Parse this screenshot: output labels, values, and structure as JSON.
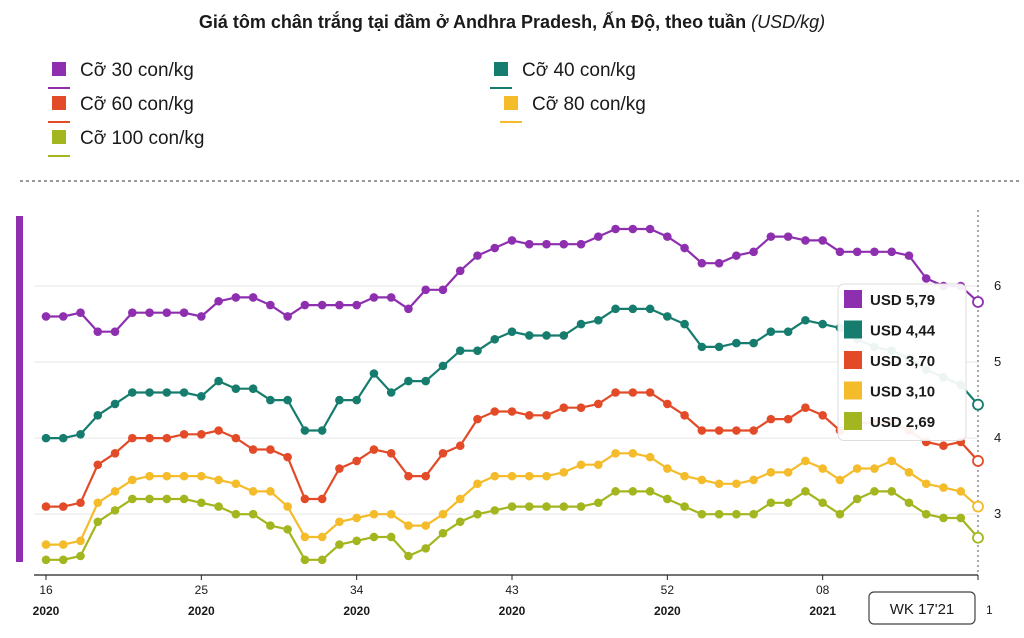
{
  "title": "Giá tôm chân trắng tại đầm ở Andhra Pradesh, Ấn Độ, theo tuần",
  "title_unit": "(USD/kg)",
  "week_label": "WK 17'21",
  "edge_label": "1",
  "chart_data": {
    "type": "line",
    "title": "Giá tôm chân trắng tại đầm ở Andhra Pradesh, Ấn Độ, theo tuần (USD/kg)",
    "ylim": [
      2.2,
      7.0
    ],
    "yticks": [
      3,
      4,
      5,
      6
    ],
    "grid": true,
    "legend_position": "top",
    "x_ticks": [
      {
        "week": "16",
        "year": "2020",
        "index": 0
      },
      {
        "week": "25",
        "year": "2020",
        "index": 9
      },
      {
        "week": "34",
        "year": "2020",
        "index": 18
      },
      {
        "week": "43",
        "year": "2020",
        "index": 27
      },
      {
        "week": "52",
        "year": "2020",
        "index": 36
      },
      {
        "week": "08",
        "year": "2021",
        "index": 45
      },
      {
        "week": "17",
        "year": "2021",
        "index": 54
      }
    ],
    "series": [
      {
        "name": "Cỡ 30 con/kg",
        "color": "#8e2fb0",
        "end_label": "USD 5,79",
        "values": [
          5.6,
          5.6,
          5.65,
          5.4,
          5.4,
          5.65,
          5.65,
          5.65,
          5.65,
          5.6,
          5.8,
          5.85,
          5.85,
          5.75,
          5.6,
          5.75,
          5.75,
          5.75,
          5.75,
          5.85,
          5.85,
          5.7,
          5.95,
          5.95,
          6.2,
          6.4,
          6.5,
          6.6,
          6.55,
          6.55,
          6.55,
          6.55,
          6.65,
          6.75,
          6.75,
          6.75,
          6.65,
          6.5,
          6.3,
          6.3,
          6.4,
          6.45,
          6.65,
          6.65,
          6.6,
          6.6,
          6.45,
          6.45,
          6.45,
          6.45,
          6.4,
          6.1,
          6.0,
          6.0,
          5.79
        ]
      },
      {
        "name": "Cỡ 40 con/kg",
        "color": "#167c6e",
        "end_label": "USD 4,44",
        "values": [
          4.0,
          4.0,
          4.05,
          4.3,
          4.45,
          4.6,
          4.6,
          4.6,
          4.6,
          4.55,
          4.75,
          4.65,
          4.65,
          4.5,
          4.5,
          4.1,
          4.1,
          4.5,
          4.5,
          4.85,
          4.6,
          4.75,
          4.75,
          4.95,
          5.15,
          5.15,
          5.3,
          5.4,
          5.35,
          5.35,
          5.35,
          5.5,
          5.55,
          5.7,
          5.7,
          5.7,
          5.6,
          5.5,
          5.2,
          5.2,
          5.25,
          5.25,
          5.4,
          5.4,
          5.55,
          5.5,
          5.45,
          5.3,
          5.2,
          5.15,
          5.05,
          4.9,
          4.8,
          4.7,
          4.44
        ]
      },
      {
        "name": "Cỡ 60 con/kg",
        "color": "#e34a28",
        "end_label": "USD 3,70",
        "values": [
          3.1,
          3.1,
          3.15,
          3.65,
          3.8,
          4.0,
          4.0,
          4.0,
          4.05,
          4.05,
          4.1,
          4.0,
          3.85,
          3.85,
          3.75,
          3.2,
          3.2,
          3.6,
          3.7,
          3.85,
          3.8,
          3.5,
          3.5,
          3.8,
          3.9,
          4.25,
          4.35,
          4.35,
          4.3,
          4.3,
          4.4,
          4.4,
          4.45,
          4.6,
          4.6,
          4.6,
          4.45,
          4.3,
          4.1,
          4.1,
          4.1,
          4.1,
          4.25,
          4.25,
          4.4,
          4.3,
          4.1,
          4.2,
          4.2,
          4.2,
          4.1,
          3.95,
          3.9,
          3.95,
          3.7
        ]
      },
      {
        "name": "Cỡ 80 con/kg",
        "color": "#f4bb2a",
        "end_label": "USD 3,10",
        "values": [
          2.6,
          2.6,
          2.65,
          3.15,
          3.3,
          3.45,
          3.5,
          3.5,
          3.5,
          3.5,
          3.45,
          3.4,
          3.3,
          3.3,
          3.1,
          2.7,
          2.7,
          2.9,
          2.95,
          3.0,
          3.0,
          2.85,
          2.85,
          3.0,
          3.2,
          3.4,
          3.5,
          3.5,
          3.5,
          3.5,
          3.55,
          3.65,
          3.65,
          3.8,
          3.8,
          3.75,
          3.6,
          3.5,
          3.45,
          3.4,
          3.4,
          3.45,
          3.55,
          3.55,
          3.7,
          3.6,
          3.45,
          3.6,
          3.6,
          3.7,
          3.55,
          3.4,
          3.35,
          3.3,
          3.1
        ]
      },
      {
        "name": "Cỡ 100 con/kg",
        "color": "#a3b61f",
        "end_label": "USD 2,69",
        "values": [
          2.4,
          2.4,
          2.45,
          2.9,
          3.05,
          3.2,
          3.2,
          3.2,
          3.2,
          3.15,
          3.1,
          3.0,
          3.0,
          2.85,
          2.8,
          2.4,
          2.4,
          2.6,
          2.65,
          2.7,
          2.7,
          2.45,
          2.55,
          2.75,
          2.9,
          3.0,
          3.05,
          3.1,
          3.1,
          3.1,
          3.1,
          3.1,
          3.15,
          3.3,
          3.3,
          3.3,
          3.2,
          3.1,
          3.0,
          3.0,
          3.0,
          3.0,
          3.15,
          3.15,
          3.3,
          3.15,
          3.0,
          3.2,
          3.3,
          3.3,
          3.15,
          3.0,
          2.95,
          2.95,
          2.69
        ]
      }
    ]
  }
}
